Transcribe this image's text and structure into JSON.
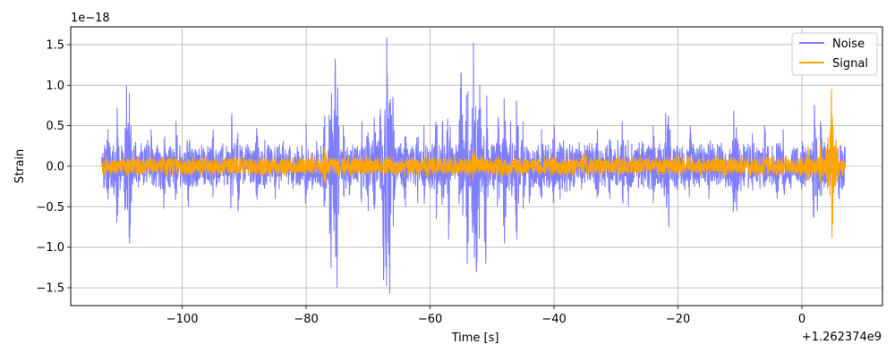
{
  "chart_data": {
    "type": "line",
    "title": "",
    "xlabel": "Time [s]",
    "ylabel": "Strain",
    "x_offset_label": "+1.262374e9",
    "y_scale_label": "1e−18",
    "xlim": [
      -118,
      13
    ],
    "ylim": [
      -1.72,
      1.72
    ],
    "x_ticks": [
      -100,
      -80,
      -60,
      -40,
      -20,
      0
    ],
    "x_tick_labels": [
      "−100",
      "−80",
      "−60",
      "−40",
      "−20",
      "0"
    ],
    "y_ticks": [
      -1.5,
      -1.0,
      -0.5,
      0.0,
      0.5,
      1.0,
      1.5
    ],
    "y_tick_labels": [
      "−1.5",
      "−1.0",
      "−0.5",
      "0.0",
      "0.5",
      "1.0",
      "1.5"
    ],
    "grid": true,
    "legend": {
      "position": "top-right"
    },
    "series": [
      {
        "name": "Noise",
        "color": "#7f7fff",
        "x_range": [
          -113,
          7
        ],
        "baseline_peak": 0.32,
        "peaks": [
          [
            -112,
            0.45
          ],
          [
            -111,
            -0.35
          ],
          [
            -110.5,
            0.72
          ],
          [
            -109,
            1.0
          ],
          [
            -108.5,
            -0.95
          ],
          [
            -105,
            0.45
          ],
          [
            -103,
            -0.52
          ],
          [
            -101,
            0.55
          ],
          [
            -99,
            -0.5
          ],
          [
            -95,
            0.44
          ],
          [
            -92,
            0.65
          ],
          [
            -91,
            -0.55
          ],
          [
            -88,
            0.47
          ],
          [
            -85,
            -0.4
          ],
          [
            -80,
            0.53
          ],
          [
            -77,
            0.62
          ],
          [
            -76,
            -1.25
          ],
          [
            -75.3,
            1.32
          ],
          [
            -75,
            -1.5
          ],
          [
            -74,
            0.5
          ],
          [
            -73,
            -0.35
          ],
          [
            -71,
            0.55
          ],
          [
            -70,
            -0.55
          ],
          [
            -69,
            0.6
          ],
          [
            -68,
            0.7
          ],
          [
            -67.5,
            -1.4
          ],
          [
            -67,
            1.58
          ],
          [
            -66.5,
            -1.57
          ],
          [
            -66,
            0.85
          ],
          [
            -64,
            -0.5
          ],
          [
            -62,
            -0.45
          ],
          [
            -61,
            0.5
          ],
          [
            -59,
            -0.65
          ],
          [
            -58,
            0.55
          ],
          [
            -57,
            -0.9
          ],
          [
            -55,
            1.15
          ],
          [
            -54,
            -1.2
          ],
          [
            -53,
            1.52
          ],
          [
            -52.5,
            -1.3
          ],
          [
            -52,
            1.0
          ],
          [
            -51,
            -1.2
          ],
          [
            -49,
            0.6
          ],
          [
            -48,
            -0.95
          ],
          [
            -47,
            0.55
          ],
          [
            -46,
            -0.9
          ],
          [
            -45,
            0.55
          ],
          [
            -44,
            -0.45
          ],
          [
            -42,
            0.45
          ],
          [
            -40,
            0.5
          ],
          [
            -39,
            -0.4
          ],
          [
            -33,
            0.45
          ],
          [
            -31,
            -0.4
          ],
          [
            -29,
            0.55
          ],
          [
            -28,
            -0.5
          ],
          [
            -24,
            0.5
          ],
          [
            -22,
            0.65
          ],
          [
            -21.5,
            -0.75
          ],
          [
            -18,
            0.5
          ],
          [
            -15,
            -0.4
          ],
          [
            -11,
            0.68
          ],
          [
            -10.5,
            -0.55
          ],
          [
            -8,
            0.4
          ],
          [
            -6,
            0.5
          ],
          [
            -4,
            -0.4
          ],
          [
            -3,
            0.45
          ],
          [
            2,
            0.75
          ],
          [
            2.5,
            -0.55
          ],
          [
            3,
            0.55
          ],
          [
            5,
            0.4
          ],
          [
            6,
            -0.4
          ]
        ]
      },
      {
        "name": "Signal",
        "color": "#ffa500",
        "x_range": [
          -113,
          7
        ],
        "baseline_peak": 0.13,
        "peaks": [
          [
            -77,
            0.24
          ],
          [
            -53,
            0.2
          ],
          [
            -35,
            0.17
          ],
          [
            -20,
            0.15
          ],
          [
            -10,
            0.13
          ],
          [
            1,
            0.24
          ],
          [
            3,
            0.3
          ],
          [
            4.2,
            0.35
          ],
          [
            4.8,
            0.95
          ],
          [
            4.85,
            -0.88
          ],
          [
            5.5,
            0.32
          ]
        ]
      }
    ]
  }
}
